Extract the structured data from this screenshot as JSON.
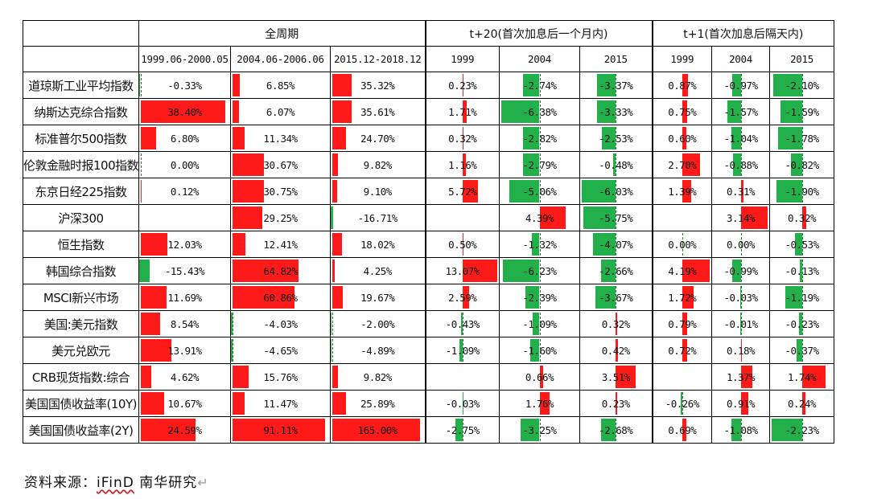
{
  "table": {
    "group_headers": [
      "全周期",
      "t+20(首次加息后一个月内)",
      "t+1(首次加息后隔天内)"
    ],
    "sub_headers": [
      "1999.06-2000.05",
      "2004.06-2006.06",
      "2015.12-2018.12",
      "1999",
      "2004",
      "2015",
      "1999",
      "2004",
      "2015"
    ],
    "colors": {
      "positive": "#ff1a1a",
      "negative": "#22b04b"
    },
    "rows": [
      {
        "label": "道琼斯工业平均指数",
        "values": [
          "-0.33%",
          "6.85%",
          "35.32%",
          "0.23%",
          "-2.74%",
          "-3.37%",
          "0.87%",
          "-0.97%",
          "-2.10%"
        ],
        "nums": [
          -0.33,
          6.85,
          35.32,
          0.23,
          -2.74,
          -3.37,
          0.87,
          -0.97,
          -2.1
        ]
      },
      {
        "label": "纳斯达克综合指数",
        "values": [
          "38.40%",
          "6.07%",
          "35.61%",
          "1.71%",
          "-6.38%",
          "-3.33%",
          "0.75%",
          "-1.57%",
          "-1.59%"
        ],
        "nums": [
          38.4,
          6.07,
          35.61,
          1.71,
          -6.38,
          -3.33,
          0.75,
          -1.57,
          -1.59
        ]
      },
      {
        "label": "标准普尔500指数",
        "values": [
          "6.80%",
          "11.34%",
          "24.70%",
          "0.32%",
          "-2.82%",
          "-2.53%",
          "0.60%",
          "-1.04%",
          "-1.78%"
        ],
        "nums": [
          6.8,
          11.34,
          24.7,
          0.32,
          -2.82,
          -2.53,
          0.6,
          -1.04,
          -1.78
        ]
      },
      {
        "label": "伦敦金融时报100指数",
        "values": [
          "0.00%",
          "30.67%",
          "9.82%",
          "1.16%",
          "-2.79%",
          "-0.48%",
          "2.70%",
          "-0.88%",
          "-0.82%"
        ],
        "nums": [
          0.0,
          30.67,
          9.82,
          1.16,
          -2.79,
          -0.48,
          2.7,
          -0.88,
          -0.82
        ]
      },
      {
        "label": "东京日经225指数",
        "values": [
          "0.12%",
          "30.75%",
          "9.10%",
          "5.72%",
          "-5.06%",
          "-6.03%",
          "1.39%",
          "0.31%",
          "-1.90%"
        ],
        "nums": [
          0.12,
          30.75,
          9.1,
          5.72,
          -5.06,
          -6.03,
          1.39,
          0.31,
          -1.9
        ]
      },
      {
        "label": "沪深300",
        "values": [
          "",
          "29.25%",
          "-16.71%",
          "",
          "4.39%",
          "-5.75%",
          "",
          "3.14%",
          "0.32%"
        ],
        "nums": [
          null,
          29.25,
          -16.71,
          null,
          4.39,
          -5.75,
          null,
          3.14,
          0.32
        ]
      },
      {
        "label": "恒生指数",
        "values": [
          "12.03%",
          "12.41%",
          "18.02%",
          "0.50%",
          "-1.32%",
          "-4.07%",
          "0.00%",
          "0.00%",
          "-0.53%"
        ],
        "nums": [
          12.03,
          12.41,
          18.02,
          0.5,
          -1.32,
          -4.07,
          0.0,
          0.0,
          -0.53
        ]
      },
      {
        "label": "韩国综合指数",
        "values": [
          "-15.43%",
          "64.82%",
          "4.25%",
          "13.07%",
          "-6.23%",
          "-2.66%",
          "4.19%",
          "-0.99%",
          "-0.13%"
        ],
        "nums": [
          -15.43,
          64.82,
          4.25,
          13.07,
          -6.23,
          -2.66,
          4.19,
          -0.99,
          -0.13
        ]
      },
      {
        "label": "MSCI新兴市场",
        "values": [
          "11.69%",
          "60.86%",
          "19.67%",
          "2.59%",
          "-2.39%",
          "-3.67%",
          "1.72%",
          "-0.03%",
          "-1.19%"
        ],
        "nums": [
          11.69,
          60.86,
          19.67,
          2.59,
          -2.39,
          -3.67,
          1.72,
          -0.03,
          -1.19
        ]
      },
      {
        "label": "美国:美元指数",
        "values": [
          "8.54%",
          "-4.03%",
          "-2.00%",
          "-0.43%",
          "-1.09%",
          "0.32%",
          "0.79%",
          "-0.01%",
          "-0.23%"
        ],
        "nums": [
          8.54,
          -4.03,
          -2.0,
          -0.43,
          -1.09,
          0.32,
          0.79,
          -0.01,
          -0.23
        ]
      },
      {
        "label": "美元兑欧元",
        "values": [
          "13.91%",
          "-4.65%",
          "-4.89%",
          "-1.09%",
          "-1.60%",
          "0.42%",
          "0.72%",
          "0.18%",
          "-0.37%"
        ],
        "nums": [
          13.91,
          -4.65,
          -4.89,
          -1.09,
          -1.6,
          0.42,
          0.72,
          0.18,
          -0.37
        ]
      },
      {
        "label": "CRB现货指数:综合",
        "values": [
          "4.62%",
          "15.76%",
          "9.82%",
          "",
          "0.66%",
          "3.51%",
          "",
          "1.37%",
          "1.74%"
        ],
        "nums": [
          4.62,
          15.76,
          9.82,
          null,
          0.66,
          3.51,
          null,
          1.37,
          1.74
        ]
      },
      {
        "label": "美国国债收益率(10Y)",
        "values": [
          "10.67%",
          "11.47%",
          "25.89%",
          "-0.03%",
          "1.76%",
          "0.23%",
          "-0.26%",
          "0.91%",
          "0.24%"
        ],
        "nums": [
          10.67,
          11.47,
          25.89,
          -0.03,
          1.76,
          0.23,
          -0.26,
          0.91,
          0.24
        ]
      },
      {
        "label": "美国国债收益率(2Y)",
        "values": [
          "24.59%",
          "91.11%",
          "165.00%",
          "-2.75%",
          "-3.25%",
          "-2.68%",
          "0.69%",
          "-1.08%",
          "-2.23%"
        ],
        "nums": [
          24.59,
          91.11,
          165.0,
          -2.75,
          -3.25,
          -2.68,
          0.69,
          -1.08,
          -2.23
        ]
      }
    ]
  },
  "source": {
    "prefix": "资料来源：",
    "brand": "iFinD",
    "suffix": "南华研究"
  }
}
